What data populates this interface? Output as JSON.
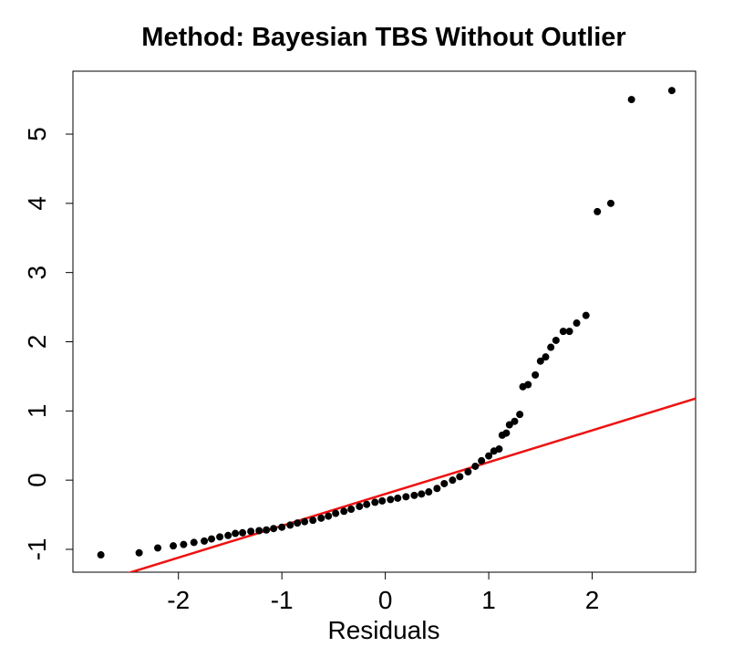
{
  "chart_data": {
    "type": "scatter",
    "title": "Method: Bayesian TBS Without Outlier",
    "x_label": "Residuals",
    "x": [
      -2.75,
      -2.38,
      -2.2,
      -2.05,
      -1.95,
      -1.85,
      -1.75,
      -1.68,
      -1.6,
      -1.52,
      -1.45,
      -1.38,
      -1.3,
      -1.22,
      -1.15,
      -1.08,
      -1.0,
      -0.92,
      -0.85,
      -0.78,
      -0.7,
      -0.62,
      -0.55,
      -0.48,
      -0.4,
      -0.33,
      -0.25,
      -0.18,
      -0.1,
      -0.03,
      0.05,
      0.12,
      0.2,
      0.28,
      0.35,
      0.42,
      0.5,
      0.57,
      0.65,
      0.72,
      0.8,
      0.87,
      0.93,
      1.0,
      1.05,
      1.1,
      1.13,
      1.17,
      1.2,
      1.25,
      1.3,
      1.33,
      1.38,
      1.45,
      1.5,
      1.55,
      1.6,
      1.65,
      1.72,
      1.78,
      1.85,
      1.94,
      2.05,
      2.18,
      2.38,
      2.77
    ],
    "values": [
      -1.08,
      -1.05,
      -0.98,
      -0.95,
      -0.93,
      -0.9,
      -0.88,
      -0.85,
      -0.82,
      -0.8,
      -0.77,
      -0.76,
      -0.74,
      -0.73,
      -0.72,
      -0.7,
      -0.68,
      -0.65,
      -0.62,
      -0.6,
      -0.58,
      -0.55,
      -0.52,
      -0.48,
      -0.45,
      -0.42,
      -0.38,
      -0.35,
      -0.32,
      -0.3,
      -0.28,
      -0.26,
      -0.24,
      -0.22,
      -0.2,
      -0.17,
      -0.12,
      -0.05,
      0.0,
      0.05,
      0.12,
      0.2,
      0.28,
      0.35,
      0.42,
      0.45,
      0.65,
      0.68,
      0.8,
      0.85,
      0.95,
      1.35,
      1.38,
      1.52,
      1.72,
      1.78,
      1.92,
      2.02,
      2.15,
      2.15,
      2.27,
      2.38,
      3.88,
      4.0,
      5.5,
      5.63
    ],
    "color": "#000000",
    "reference_line": {
      "intercept": -0.2,
      "slope": 0.46,
      "color": "#ee1111"
    },
    "xlim": [
      -3.02,
      3.0
    ],
    "ylim": [
      -1.33,
      5.91
    ],
    "xticks": [
      -2,
      -1,
      0,
      1,
      2
    ],
    "yticks": [
      -1,
      0,
      1,
      2,
      3,
      4,
      5
    ]
  }
}
